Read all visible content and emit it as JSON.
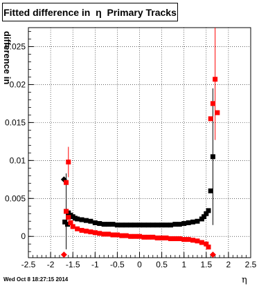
{
  "title": "Fitted difference in  η  Primary Tracks",
  "timestamp": "Wed Oct  8 18:27:15 2014",
  "chart_data": {
    "type": "scatter",
    "title": "Fitted difference in  η  Primary Tracks",
    "xlabel": "η",
    "ylabel": "difference in",
    "xlim": [
      -2.5,
      2.5
    ],
    "ylim": [
      -0.0028,
      0.0275
    ],
    "xticks": [
      "-2.5",
      "-2",
      "-1.5",
      "-1",
      "-0.5",
      "0",
      "0.5",
      "1",
      "1.5",
      "2",
      "2.5"
    ],
    "yticks": [
      "0",
      "0.005",
      "0.01",
      "0.015",
      "0.02",
      "0.025"
    ],
    "grid": true,
    "series": [
      {
        "color": "#000000",
        "marker": "square",
        "points": [
          {
            "x": -1.7,
            "y": 0.0075,
            "marker": "diamond"
          },
          {
            "x": -1.65,
            "y": 0.0033,
            "err": 0.005
          },
          {
            "x": -1.6,
            "y": 0.0031
          },
          {
            "x": -1.55,
            "y": 0.0028
          },
          {
            "x": -1.5,
            "y": 0.0026
          },
          {
            "x": -1.45,
            "y": 0.0024
          },
          {
            "x": -1.4,
            "y": 0.0023
          },
          {
            "x": -1.3,
            "y": 0.0022
          },
          {
            "x": -1.2,
            "y": 0.0021
          },
          {
            "x": -1.1,
            "y": 0.002
          },
          {
            "x": -1.0,
            "y": 0.0018
          },
          {
            "x": -0.9,
            "y": 0.0017
          },
          {
            "x": -0.8,
            "y": 0.0016
          },
          {
            "x": -0.7,
            "y": 0.0016
          },
          {
            "x": -0.6,
            "y": 0.0016
          },
          {
            "x": -0.5,
            "y": 0.0015
          },
          {
            "x": -0.4,
            "y": 0.0015
          },
          {
            "x": -0.3,
            "y": 0.0015
          },
          {
            "x": -0.2,
            "y": 0.0015
          },
          {
            "x": -0.1,
            "y": 0.0015
          },
          {
            "x": 0.0,
            "y": 0.0015
          },
          {
            "x": 0.1,
            "y": 0.0015
          },
          {
            "x": 0.2,
            "y": 0.0015
          },
          {
            "x": 0.3,
            "y": 0.0015
          },
          {
            "x": 0.4,
            "y": 0.0015
          },
          {
            "x": 0.5,
            "y": 0.0015
          },
          {
            "x": 0.6,
            "y": 0.0015
          },
          {
            "x": 0.7,
            "y": 0.0015
          },
          {
            "x": 0.8,
            "y": 0.0016
          },
          {
            "x": 0.9,
            "y": 0.0016
          },
          {
            "x": 1.0,
            "y": 0.0017
          },
          {
            "x": 1.1,
            "y": 0.0018
          },
          {
            "x": 1.2,
            "y": 0.0019
          },
          {
            "x": 1.3,
            "y": 0.002
          },
          {
            "x": 1.4,
            "y": 0.0023
          },
          {
            "x": 1.45,
            "y": 0.0026
          },
          {
            "x": 1.5,
            "y": 0.003
          },
          {
            "x": 1.55,
            "y": 0.0034
          },
          {
            "x": 1.6,
            "y": 0.006
          },
          {
            "x": 1.65,
            "y": 0.0105,
            "err": 0.009
          },
          {
            "x": -1.68,
            "y": 0.0019
          },
          {
            "x": -1.62,
            "y": 0.0016
          }
        ]
      },
      {
        "color": "#ff0000",
        "marker": "square",
        "points": [
          {
            "x": -1.7,
            "y": -0.0024,
            "marker": "diamond"
          },
          {
            "x": -1.65,
            "y": 0.0071
          },
          {
            "x": -1.6,
            "y": 0.0098,
            "err": 0.002
          },
          {
            "x": -1.65,
            "y": 0.0033
          },
          {
            "x": -1.6,
            "y": 0.0025
          },
          {
            "x": -1.55,
            "y": 0.0018
          },
          {
            "x": -1.5,
            "y": 0.0013
          },
          {
            "x": -1.4,
            "y": 0.001
          },
          {
            "x": -1.3,
            "y": 0.0008
          },
          {
            "x": -1.2,
            "y": 0.0007
          },
          {
            "x": -1.1,
            "y": 0.0006
          },
          {
            "x": -1.0,
            "y": 0.0005
          },
          {
            "x": -0.9,
            "y": 0.0004
          },
          {
            "x": -0.8,
            "y": 0.0003
          },
          {
            "x": -0.7,
            "y": 0.0003
          },
          {
            "x": -0.6,
            "y": 0.0002
          },
          {
            "x": -0.5,
            "y": 0.0002
          },
          {
            "x": -0.4,
            "y": 0.0001
          },
          {
            "x": -0.3,
            "y": 0.0001
          },
          {
            "x": -0.2,
            "y": 0.0
          },
          {
            "x": -0.1,
            "y": 0.0
          },
          {
            "x": 0.0,
            "y": 0.0
          },
          {
            "x": 0.1,
            "y": -0.0001
          },
          {
            "x": 0.2,
            "y": -0.0001
          },
          {
            "x": 0.3,
            "y": -0.0001
          },
          {
            "x": 0.4,
            "y": -0.0002
          },
          {
            "x": 0.5,
            "y": -0.0002
          },
          {
            "x": 0.6,
            "y": -0.0002
          },
          {
            "x": 0.7,
            "y": -0.0003
          },
          {
            "x": 0.8,
            "y": -0.0003
          },
          {
            "x": 0.9,
            "y": -0.0003
          },
          {
            "x": 1.0,
            "y": -0.0004
          },
          {
            "x": 1.1,
            "y": -0.0004
          },
          {
            "x": 1.2,
            "y": -0.0005
          },
          {
            "x": 1.3,
            "y": -0.0006
          },
          {
            "x": 1.4,
            "y": -0.0008
          },
          {
            "x": 1.5,
            "y": -0.001
          },
          {
            "x": 1.55,
            "y": -0.0014
          },
          {
            "x": 1.6,
            "y": 0.0155
          },
          {
            "x": 1.65,
            "y": 0.0175
          },
          {
            "x": 1.7,
            "y": 0.0207,
            "err": 0.008
          },
          {
            "x": 1.75,
            "y": 0.0163
          },
          {
            "x": 1.65,
            "y": -0.0024,
            "marker": "diamond"
          }
        ]
      }
    ]
  }
}
